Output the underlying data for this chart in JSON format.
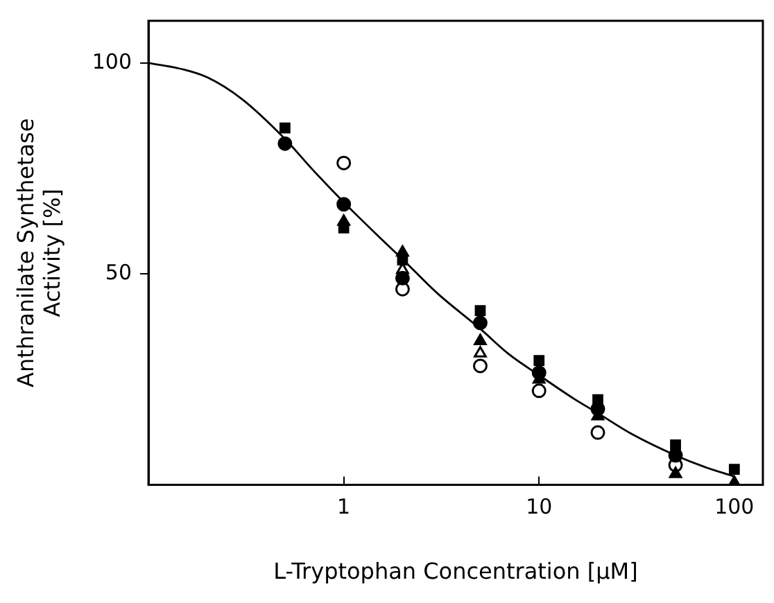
{
  "chart_data": {
    "type": "scatter",
    "xlabel": "L-Tryptophan Concentration [µM]",
    "ylabel": "Anthranilate Synthetase\nActivity [%]",
    "log": "x",
    "xlim": [
      0.1,
      140
    ],
    "xticks": [
      1,
      10,
      100
    ],
    "ylim": [
      0,
      110
    ],
    "yticks": [
      50,
      100
    ],
    "grid": false,
    "legend": false,
    "series": [
      {
        "type": "line",
        "color": "#000000",
        "marker": "none",
        "line_style": "solid",
        "x": [
          0.1,
          0.15,
          0.2,
          0.3,
          0.5,
          0.7,
          1,
          1.5,
          2,
          3,
          5,
          7,
          10,
          15,
          20,
          30,
          50,
          70,
          100
        ],
        "values": [
          100,
          98.5,
          96.6,
          91.5,
          82,
          74.5,
          67,
          59,
          53.5,
          45.5,
          37,
          31,
          26,
          20.5,
          17,
          12,
          7,
          4.3,
          2
        ]
      },
      {
        "marker": "square",
        "color": "#000000",
        "x": [
          0.5,
          1,
          2,
          5,
          10,
          20,
          50,
          100
        ],
        "values": [
          84.6,
          60.9,
          53.3,
          41.3,
          29.5,
          20.2,
          9.5,
          3.7
        ]
      },
      {
        "marker": "circle",
        "color": "#000000",
        "x": [
          0.5,
          1,
          2,
          5,
          10,
          20,
          50
        ],
        "values": [
          80.9,
          66.5,
          49,
          38.4,
          26.6,
          18,
          7
        ]
      },
      {
        "marker": "triangle",
        "color": "#000000",
        "x": [
          1,
          2,
          5,
          10,
          20,
          50,
          100
        ],
        "values": [
          62.4,
          55.1,
          34.1,
          25,
          16.3,
          2.6,
          0.5
        ]
      },
      {
        "marker": "circle",
        "color": "#ffffff",
        "x": [
          1,
          2,
          5,
          10,
          20,
          50
        ],
        "values": [
          76.3,
          46.4,
          28.2,
          22.3,
          12.4,
          4.7
        ]
      },
      {
        "marker": "triangle",
        "color": "#ffffff",
        "x": [
          2,
          5
        ],
        "values": [
          51,
          31.2
        ]
      }
    ]
  }
}
